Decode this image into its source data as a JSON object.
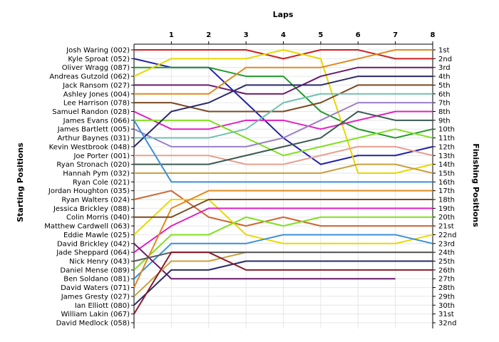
{
  "chart_data": {
    "type": "line",
    "x_title": "Laps",
    "y_left_title": "Starting Positions",
    "y_right_title": "Finishing Positions",
    "laps": [
      0,
      1,
      2,
      3,
      4,
      5,
      6,
      7,
      8
    ],
    "x_tick_labels": [
      "1",
      "2",
      "3",
      "4",
      "5",
      "6",
      "7",
      "8"
    ],
    "y_range": [
      1,
      32
    ],
    "grid": true,
    "finishing_positions": [
      "1st",
      "2nd",
      "3rd",
      "4th",
      "5th",
      "6th",
      "7th",
      "8th",
      "9th",
      "10th",
      "11th",
      "12th",
      "13th",
      "14th",
      "15th",
      "16th",
      "17th",
      "18th",
      "19th",
      "20th",
      "21st",
      "22nd",
      "23rd",
      "24th",
      "25th",
      "26th",
      "27th",
      "28th",
      "29th",
      "30th",
      "31st",
      "32nd"
    ],
    "series": [
      {
        "name": "Josh Waring (002)",
        "color": "#cc2222",
        "positions": [
          1,
          1,
          1,
          1,
          2,
          1,
          1,
          2,
          2
        ]
      },
      {
        "name": "Kyle Sproat (052)",
        "color": "#2222aa",
        "positions": [
          2,
          3,
          3,
          7,
          11,
          14,
          13,
          13,
          12
        ]
      },
      {
        "name": "Oliver Wragg (087)",
        "color": "#22992a",
        "positions": [
          3,
          3,
          3,
          4,
          4,
          8,
          10,
          11,
          10
        ]
      },
      {
        "name": "Andreas Gutzold (062)",
        "color": "#e8d800",
        "positions": [
          4,
          2,
          2,
          2,
          1,
          2,
          15,
          15,
          14
        ]
      },
      {
        "name": "Jack Ransom (027)",
        "color": "#6a1a6a",
        "positions": [
          5,
          5,
          5,
          6,
          6,
          4,
          3,
          3,
          3
        ]
      },
      {
        "name": "Ashley Jones (004)",
        "color": "#e08a20",
        "positions": [
          6,
          6,
          6,
          3,
          3,
          3,
          2,
          1,
          1
        ]
      },
      {
        "name": "Lee Harrison (078)",
        "color": "#7a4a22",
        "positions": [
          7,
          7,
          8,
          8,
          8,
          7,
          5,
          5,
          5
        ]
      },
      {
        "name": "Samuel Randon (028)",
        "color": "#e020c0",
        "positions": [
          8,
          10,
          10,
          9,
          9,
          10,
          9,
          8,
          8
        ]
      },
      {
        "name": "James Evans (066)",
        "color": "#80e020",
        "positions": [
          9,
          9,
          9,
          11,
          13,
          12,
          11,
          10,
          11
        ]
      },
      {
        "name": "James Bartlett (005)",
        "color": "#9a80c8",
        "positions": [
          10,
          12,
          12,
          12,
          11,
          9,
          7,
          7,
          7
        ]
      },
      {
        "name": "Arthur Baynes (031)",
        "color": "#70c0b0",
        "positions": [
          11,
          11,
          11,
          10,
          7,
          6,
          6,
          6,
          6
        ]
      },
      {
        "name": "Kevin Westbrook (048)",
        "color": "#2a2a6a",
        "positions": [
          12,
          8,
          7,
          5,
          5,
          5,
          4,
          4,
          4
        ]
      },
      {
        "name": "Joe Porter (001)",
        "color": "#e8a090",
        "positions": [
          13,
          13,
          13,
          14,
          14,
          13,
          12,
          12,
          13
        ]
      },
      {
        "name": "Ryan Stronach (020)",
        "color": "#3a5a50",
        "positions": [
          14,
          14,
          14,
          13,
          12,
          11,
          8,
          9,
          9
        ]
      },
      {
        "name": "Hannah Pym (032)",
        "color": "#c8a040",
        "positions": [
          15,
          15,
          15,
          15,
          15,
          15,
          14,
          14,
          15
        ]
      },
      {
        "name": "Ryan Cole (021)",
        "color": "#3a90d8",
        "positions": [
          9,
          16,
          16,
          16,
          16,
          16,
          16,
          16,
          16
        ]
      },
      {
        "name": "Jordan Houghton (035)",
        "color": "#cc6633",
        "positions": [
          18,
          17,
          20,
          21,
          20,
          21,
          21,
          21,
          21
        ]
      },
      {
        "name": "Ryan Walters (024)",
        "color": "#e8d800",
        "positions": [
          22,
          18,
          18,
          22,
          23,
          23,
          23,
          23,
          22
        ]
      },
      {
        "name": "Jessica Brickley (088)",
        "color": "#e020c0",
        "positions": [
          24,
          21,
          19,
          19,
          19,
          19,
          19,
          19,
          19
        ]
      },
      {
        "name": "Colin Morris (040)",
        "color": "#80e020",
        "positions": [
          26,
          22,
          22,
          20,
          21,
          20,
          20,
          20,
          20
        ]
      },
      {
        "name": "Matthew Cardwell (063)",
        "color": "#3a90d8",
        "positions": [
          27,
          23,
          23,
          23,
          22,
          22,
          22,
          22,
          23
        ]
      },
      {
        "name": "Eddie Mawle (025)",
        "color": "#e08a20",
        "positions": [
          28,
          19,
          17,
          17,
          17,
          17,
          17,
          17,
          17
        ]
      },
      {
        "name": "David Brickley (042)",
        "color": "#6a1a6a",
        "positions": [
          23,
          27,
          27,
          27,
          27,
          27,
          27,
          27,
          null
        ]
      },
      {
        "name": "Jade Sheppard (064)",
        "color": "#c8a040",
        "positions": [
          29,
          25,
          25,
          24,
          24,
          24,
          24,
          24,
          24
        ]
      },
      {
        "name": "Nick Henry (043)",
        "color": "#7a4a22",
        "positions": [
          20,
          20,
          18,
          18,
          18,
          18,
          18,
          18,
          18
        ]
      },
      {
        "name": "Daniel Mense (089)",
        "color": "#5a5a5a",
        "positions": [
          25,
          24,
          24,
          24,
          24,
          24,
          24,
          24,
          24
        ]
      },
      {
        "name": "Ben Soldano (081)",
        "color": "#2a2a6a",
        "positions": [
          30,
          26,
          26,
          25,
          25,
          25,
          25,
          25,
          25
        ]
      },
      {
        "name": "David Waters (071)",
        "color": "#8a1a2a",
        "positions": [
          31,
          24,
          24,
          26,
          26,
          26,
          26,
          26,
          26
        ]
      }
    ]
  },
  "left_labels": [
    "Josh Waring (002)",
    "Kyle Sproat (052)",
    "Oliver Wragg (087)",
    "Andreas Gutzold (062)",
    "Jack Ransom (027)",
    "Ashley Jones (004)",
    "Lee Harrison (078)",
    "Samuel Randon (028)",
    "James Evans (066)",
    "James Bartlett (005)",
    "Arthur Baynes (031)",
    "Kevin Westbrook (048)",
    "Joe Porter (001)",
    "Ryan Stronach (020)",
    "Hannah Pym (032)",
    "Ryan Cole (021)",
    "Jordan Houghton (035)",
    "Ryan Walters (024)",
    "Jessica Brickley (088)",
    "Colin Morris (040)",
    "Matthew Cardwell (063)",
    "Eddie Mawle (025)",
    "David Brickley (042)",
    "Jade Sheppard (064)",
    "Nick Henry (043)",
    "Daniel Mense (089)",
    "Ben Soldano (081)",
    "David Waters (071)",
    "James Gresty (027)",
    "Ian Elliott (080)",
    "William Lakin (067)",
    "David Medlock (058)"
  ]
}
